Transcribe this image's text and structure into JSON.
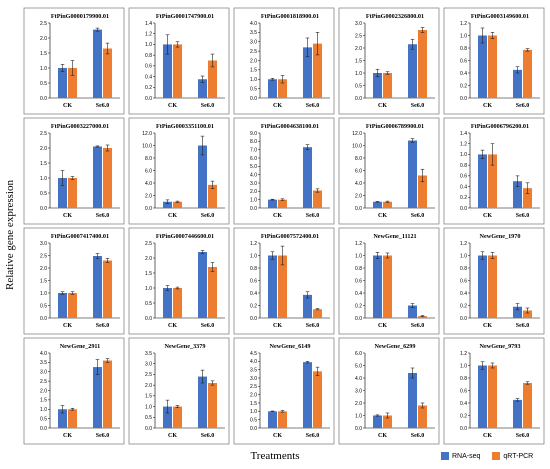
{
  "ylabel": "Relative gene expression",
  "xlabel": "Treatments",
  "colors": {
    "rna": "#4472c4",
    "qpcr": "#ed7d31",
    "panel_border": "#888888",
    "text": "#000000"
  },
  "legend": [
    {
      "name": "RNA-seq",
      "color": "#4472c4"
    },
    {
      "name": "qRT-PCR",
      "color": "#ed7d31"
    }
  ],
  "chart_data": [
    {
      "type": "bar",
      "title": "FtPinG0000179900.01",
      "categories": [
        "CK",
        "Se6.0"
      ],
      "ylim": [
        0,
        2.5
      ],
      "yticks": [
        "0.0",
        "0.5",
        "1.0",
        "1.5",
        "2.0",
        "2.5"
      ],
      "series": [
        {
          "name": "RNA-seq",
          "values": [
            1.0,
            2.28
          ],
          "errors": [
            0.12,
            0.05
          ]
        },
        {
          "name": "qRT-PCR",
          "values": [
            1.0,
            1.65
          ],
          "errors": [
            0.25,
            0.18
          ]
        }
      ]
    },
    {
      "type": "bar",
      "title": "FtPinG0001747900.01",
      "categories": [
        "CK",
        "Se6.0"
      ],
      "ylim": [
        0,
        1.4
      ],
      "yticks": [
        "0.0",
        "0.2",
        "0.4",
        "0.6",
        "0.8",
        "1.0",
        "1.2",
        "1.4"
      ],
      "series": [
        {
          "name": "RNA-seq",
          "values": [
            1.0,
            0.35
          ],
          "errors": [
            0.18,
            0.06
          ]
        },
        {
          "name": "qRT-PCR",
          "values": [
            1.0,
            0.7
          ],
          "errors": [
            0.05,
            0.12
          ]
        }
      ]
    },
    {
      "type": "bar",
      "title": "FtPinG0001818900.01",
      "categories": [
        "CK",
        "Se6.0"
      ],
      "ylim": [
        0,
        4.0
      ],
      "yticks": [
        "0.0",
        "0.5",
        "1.0",
        "1.5",
        "2.0",
        "2.5",
        "3.0",
        "3.5",
        "4.0"
      ],
      "series": [
        {
          "name": "RNA-seq",
          "values": [
            1.0,
            2.7
          ],
          "errors": [
            0.05,
            0.5
          ]
        },
        {
          "name": "qRT-PCR",
          "values": [
            1.0,
            2.9
          ],
          "errors": [
            0.2,
            0.6
          ]
        }
      ]
    },
    {
      "type": "bar",
      "title": "FtPinG0002326800.01",
      "categories": [
        "CK",
        "Se6.0"
      ],
      "ylim": [
        0,
        3.0
      ],
      "yticks": [
        "0.0",
        "0.5",
        "1.0",
        "1.5",
        "2.0",
        "2.5",
        "3.0"
      ],
      "series": [
        {
          "name": "RNA-seq",
          "values": [
            1.0,
            2.15
          ],
          "errors": [
            0.15,
            0.2
          ]
        },
        {
          "name": "qRT-PCR",
          "values": [
            1.0,
            2.72
          ],
          "errors": [
            0.05,
            0.1
          ]
        }
      ]
    },
    {
      "type": "bar",
      "title": "FtPinG0003149600.01",
      "categories": [
        "CK",
        "Se6.0"
      ],
      "ylim": [
        0,
        1.2
      ],
      "yticks": [
        "0.0",
        "0.2",
        "0.4",
        "0.6",
        "0.8",
        "1.0",
        "1.2"
      ],
      "series": [
        {
          "name": "RNA-seq",
          "values": [
            1.0,
            0.45
          ],
          "errors": [
            0.12,
            0.05
          ]
        },
        {
          "name": "qRT-PCR",
          "values": [
            1.0,
            0.77
          ],
          "errors": [
            0.05,
            0.02
          ]
        }
      ]
    },
    {
      "type": "bar",
      "title": "FtPinG0003227000.01",
      "categories": [
        "CK",
        "Se6.0"
      ],
      "ylim": [
        0,
        2.5
      ],
      "yticks": [
        "0.0",
        "0.5",
        "1.0",
        "1.5",
        "2.0",
        "2.5"
      ],
      "series": [
        {
          "name": "RNA-seq",
          "values": [
            1.0,
            2.05
          ],
          "errors": [
            0.25,
            0.02
          ]
        },
        {
          "name": "qRT-PCR",
          "values": [
            1.0,
            2.0
          ],
          "errors": [
            0.05,
            0.1
          ]
        }
      ]
    },
    {
      "type": "bar",
      "title": "FtPinG0003351100.01",
      "categories": [
        "CK",
        "Se6.0"
      ],
      "ylim": [
        0,
        12.0
      ],
      "yticks": [
        "0.0",
        "2.0",
        "4.0",
        "6.0",
        "8.0",
        "10.0",
        "12.0"
      ],
      "series": [
        {
          "name": "RNA-seq",
          "values": [
            1.0,
            10.0
          ],
          "errors": [
            0.3,
            1.5
          ]
        },
        {
          "name": "qRT-PCR",
          "values": [
            1.0,
            3.7
          ],
          "errors": [
            0.1,
            0.6
          ]
        }
      ]
    },
    {
      "type": "bar",
      "title": "FtPinG0004638100.01",
      "categories": [
        "CK",
        "Se6.0"
      ],
      "ylim": [
        0,
        9.0
      ],
      "yticks": [
        "0.0",
        "1.0",
        "2.0",
        "3.0",
        "4.0",
        "5.0",
        "6.0",
        "7.0",
        "8.0",
        "9.0"
      ],
      "series": [
        {
          "name": "RNA-seq",
          "values": [
            1.0,
            7.3
          ],
          "errors": [
            0.05,
            0.3
          ]
        },
        {
          "name": "qRT-PCR",
          "values": [
            1.0,
            2.1
          ],
          "errors": [
            0.1,
            0.2
          ]
        }
      ]
    },
    {
      "type": "bar",
      "title": "FtPinG0006789900.01",
      "categories": [
        "CK",
        "Se6.0"
      ],
      "ylim": [
        0,
        12.0
      ],
      "yticks": [
        "0.0",
        "2.0",
        "4.0",
        "6.0",
        "8.0",
        "10.0",
        "12.0"
      ],
      "series": [
        {
          "name": "RNA-seq",
          "values": [
            1.0,
            10.8
          ],
          "errors": [
            0.05,
            0.3
          ]
        },
        {
          "name": "qRT-PCR",
          "values": [
            1.0,
            5.2
          ],
          "errors": [
            0.1,
            1.0
          ]
        }
      ]
    },
    {
      "type": "bar",
      "title": "FtPinG0006796200.01",
      "categories": [
        "CK",
        "Se6.0"
      ],
      "ylim": [
        0,
        1.4
      ],
      "yticks": [
        "0.0",
        "0.2",
        "0.4",
        "0.6",
        "0.8",
        "1.0",
        "1.2",
        "1.4"
      ],
      "series": [
        {
          "name": "RNA-seq",
          "values": [
            1.0,
            0.5
          ],
          "errors": [
            0.08,
            0.1
          ]
        },
        {
          "name": "qRT-PCR",
          "values": [
            1.0,
            0.37
          ],
          "errors": [
            0.2,
            0.1
          ]
        }
      ]
    },
    {
      "type": "bar",
      "title": "FtPinG0007417400.01",
      "categories": [
        "CK",
        "Se6.0"
      ],
      "ylim": [
        0,
        3.0
      ],
      "yticks": [
        "0.0",
        "0.5",
        "1.0",
        "1.5",
        "2.0",
        "2.5",
        "3.0"
      ],
      "series": [
        {
          "name": "RNA-seq",
          "values": [
            1.0,
            2.48
          ],
          "errors": [
            0.05,
            0.1
          ]
        },
        {
          "name": "qRT-PCR",
          "values": [
            1.0,
            2.3
          ],
          "errors": [
            0.05,
            0.08
          ]
        }
      ]
    },
    {
      "type": "bar",
      "title": "FtPinG0007446600.01",
      "categories": [
        "CK",
        "Se6.0"
      ],
      "ylim": [
        0,
        2.5
      ],
      "yticks": [
        "0.0",
        "0.5",
        "1.0",
        "1.5",
        "2.0",
        "2.5"
      ],
      "series": [
        {
          "name": "RNA-seq",
          "values": [
            1.0,
            2.2
          ],
          "errors": [
            0.08,
            0.05
          ]
        },
        {
          "name": "qRT-PCR",
          "values": [
            1.0,
            1.7
          ],
          "errors": [
            0.03,
            0.15
          ]
        }
      ]
    },
    {
      "type": "bar",
      "title": "FtPinG0007572400.01",
      "categories": [
        "CK",
        "Se6.0"
      ],
      "ylim": [
        0,
        1.2
      ],
      "yticks": [
        "0.0",
        "0.2",
        "0.4",
        "0.6",
        "0.8",
        "1.0",
        "1.2"
      ],
      "series": [
        {
          "name": "RNA-seq",
          "values": [
            1.0,
            0.37
          ],
          "errors": [
            0.06,
            0.05
          ]
        },
        {
          "name": "qRT-PCR",
          "values": [
            1.0,
            0.14
          ],
          "errors": [
            0.15,
            0.01
          ]
        }
      ]
    },
    {
      "type": "bar",
      "title": "NewGene_11121",
      "categories": [
        "CK",
        "Se6.0"
      ],
      "ylim": [
        0,
        1.2
      ],
      "yticks": [
        "0.0",
        "0.2",
        "0.4",
        "0.6",
        "0.8",
        "1.0",
        "1.2"
      ],
      "series": [
        {
          "name": "RNA-seq",
          "values": [
            1.0,
            0.2
          ],
          "errors": [
            0.05,
            0.03
          ]
        },
        {
          "name": "qRT-PCR",
          "values": [
            1.0,
            0.03
          ],
          "errors": [
            0.04,
            0.01
          ]
        }
      ]
    },
    {
      "type": "bar",
      "title": "NewGene_1970",
      "categories": [
        "CK",
        "Se6.0"
      ],
      "ylim": [
        0,
        1.2
      ],
      "yticks": [
        "0.0",
        "0.2",
        "0.4",
        "0.6",
        "0.8",
        "1.0",
        "1.2"
      ],
      "series": [
        {
          "name": "RNA-seq",
          "values": [
            1.0,
            0.18
          ],
          "errors": [
            0.06,
            0.05
          ]
        },
        {
          "name": "qRT-PCR",
          "values": [
            1.0,
            0.12
          ],
          "errors": [
            0.05,
            0.04
          ]
        }
      ]
    },
    {
      "type": "bar",
      "title": "NewGene_2911",
      "categories": [
        "CK",
        "Se6.0"
      ],
      "ylim": [
        0,
        4.0
      ],
      "yticks": [
        "0.0",
        "0.5",
        "1.0",
        "1.5",
        "2.0",
        "2.5",
        "3.0",
        "3.5",
        "4.0"
      ],
      "series": [
        {
          "name": "RNA-seq",
          "values": [
            1.0,
            3.25
          ],
          "errors": [
            0.2,
            0.4
          ]
        },
        {
          "name": "qRT-PCR",
          "values": [
            1.0,
            3.6
          ],
          "errors": [
            0.05,
            0.1
          ]
        }
      ]
    },
    {
      "type": "bar",
      "title": "NewGene_3379",
      "categories": [
        "CK",
        "Se6.0"
      ],
      "ylim": [
        0,
        3.5
      ],
      "yticks": [
        "0.0",
        "0.5",
        "1.0",
        "1.5",
        "2.0",
        "2.5",
        "3.0",
        "3.5"
      ],
      "series": [
        {
          "name": "RNA-seq",
          "values": [
            1.0,
            2.4
          ],
          "errors": [
            0.3,
            0.3
          ]
        },
        {
          "name": "qRT-PCR",
          "values": [
            1.0,
            2.1
          ],
          "errors": [
            0.05,
            0.1
          ]
        }
      ]
    },
    {
      "type": "bar",
      "title": "NewGene_6149",
      "categories": [
        "CK",
        "Se6.0"
      ],
      "ylim": [
        0,
        4.5
      ],
      "yticks": [
        "0.0",
        "0.5",
        "1.0",
        "1.5",
        "2.0",
        "2.5",
        "3.0",
        "3.5",
        "4.0",
        "4.5"
      ],
      "series": [
        {
          "name": "RNA-seq",
          "values": [
            1.0,
            3.95
          ],
          "errors": [
            0.02,
            0.05
          ]
        },
        {
          "name": "qRT-PCR",
          "values": [
            1.0,
            3.4
          ],
          "errors": [
            0.05,
            0.25
          ]
        }
      ]
    },
    {
      "type": "bar",
      "title": "NewGene_6299",
      "categories": [
        "CK",
        "Se6.0"
      ],
      "ylim": [
        0,
        6.0
      ],
      "yticks": [
        "0.0",
        "1.0",
        "2.0",
        "3.0",
        "4.0",
        "5.0",
        "6.0"
      ],
      "series": [
        {
          "name": "RNA-seq",
          "values": [
            1.0,
            4.4
          ],
          "errors": [
            0.05,
            0.4
          ]
        },
        {
          "name": "qRT-PCR",
          "values": [
            1.0,
            1.8
          ],
          "errors": [
            0.2,
            0.2
          ]
        }
      ]
    },
    {
      "type": "bar",
      "title": "NewGene_9793",
      "categories": [
        "CK",
        "Se6.0"
      ],
      "ylim": [
        0,
        1.2
      ],
      "yticks": [
        "0.0",
        "0.2",
        "0.4",
        "0.6",
        "0.8",
        "1.0",
        "1.2"
      ],
      "series": [
        {
          "name": "RNA-seq",
          "values": [
            1.0,
            0.45
          ],
          "errors": [
            0.06,
            0.02
          ]
        },
        {
          "name": "qRT-PCR",
          "values": [
            1.0,
            0.72
          ],
          "errors": [
            0.04,
            0.02
          ]
        }
      ]
    }
  ]
}
